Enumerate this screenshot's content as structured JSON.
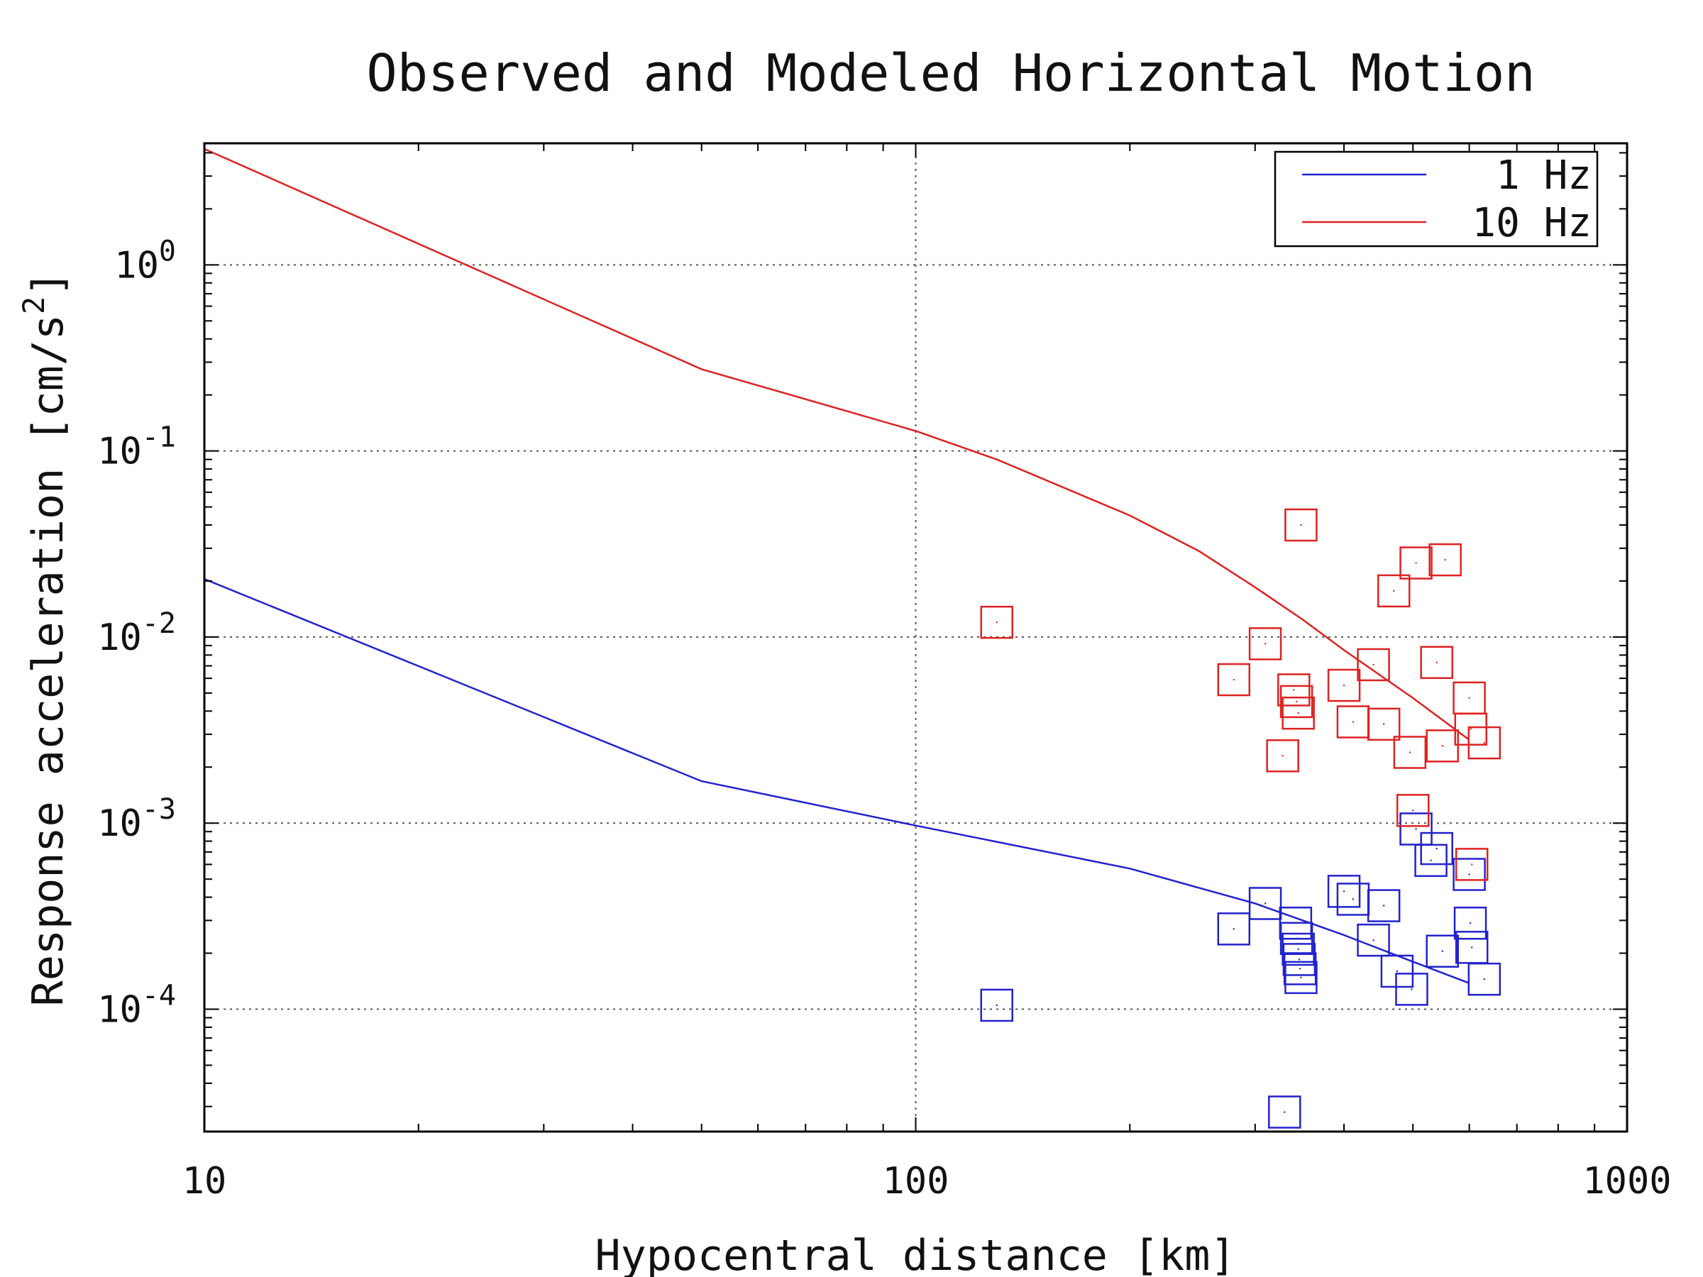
{
  "chart_data": {
    "type": "scatter",
    "title": "Observed and Modeled Horizontal Motion",
    "xlabel": "Hypocentral distance [km]",
    "ylabel": "Response acceleration [cm/s",
    "ylabel_sup": "2",
    "ylabel_end": "]",
    "xscale": "log",
    "yscale": "log",
    "xlim": [
      10,
      1000
    ],
    "ylim": [
      2.2e-05,
      4.5
    ],
    "grid": true,
    "legend_position": "top-right",
    "x_ticks": [
      {
        "value": 10,
        "label": "10"
      },
      {
        "value": 100,
        "label": "100"
      },
      {
        "value": 1000,
        "label": "1000"
      }
    ],
    "y_ticks": [
      {
        "value": 1,
        "base": "10",
        "exp": "0"
      },
      {
        "value": 0.1,
        "base": "10",
        "exp": "-1"
      },
      {
        "value": 0.01,
        "base": "10",
        "exp": "-2"
      },
      {
        "value": 0.001,
        "base": "10",
        "exp": "-3"
      },
      {
        "value": 0.0001,
        "base": "10",
        "exp": "-4"
      }
    ],
    "series": [
      {
        "name": "1 Hz",
        "color": "#2222cc",
        "model": [
          {
            "x": 10,
            "y": 0.0205
          },
          {
            "x": 50,
            "y": 0.00168
          },
          {
            "x": 100,
            "y": 0.00097
          },
          {
            "x": 200,
            "y": 0.00057
          },
          {
            "x": 300,
            "y": 0.00037
          },
          {
            "x": 400,
            "y": 0.00025
          },
          {
            "x": 500,
            "y": 0.00018
          },
          {
            "x": 600,
            "y": 0.000138
          }
        ],
        "observed": [
          {
            "x": 130,
            "y": 0.000105
          },
          {
            "x": 280,
            "y": 0.00027
          },
          {
            "x": 310,
            "y": 0.00037
          },
          {
            "x": 330,
            "y": 2.8e-05
          },
          {
            "x": 342,
            "y": 0.00029
          },
          {
            "x": 343,
            "y": 0.00024
          },
          {
            "x": 345,
            "y": 0.00021
          },
          {
            "x": 346,
            "y": 0.000185
          },
          {
            "x": 347,
            "y": 0.000165
          },
          {
            "x": 348,
            "y": 0.000148
          },
          {
            "x": 400,
            "y": 0.00043
          },
          {
            "x": 412,
            "y": 0.00039
          },
          {
            "x": 440,
            "y": 0.000235
          },
          {
            "x": 455,
            "y": 0.00036
          },
          {
            "x": 475,
            "y": 0.00016
          },
          {
            "x": 498,
            "y": 0.000128
          },
          {
            "x": 505,
            "y": 0.00093
          },
          {
            "x": 530,
            "y": 0.00063
          },
          {
            "x": 540,
            "y": 0.00073
          },
          {
            "x": 550,
            "y": 0.000205
          },
          {
            "x": 600,
            "y": 0.00053
          },
          {
            "x": 602,
            "y": 0.00029
          },
          {
            "x": 605,
            "y": 0.000215
          },
          {
            "x": 630,
            "y": 0.000145
          }
        ]
      },
      {
        "name": "10 Hz",
        "color": "#dd2222",
        "model": [
          {
            "x": 10,
            "y": 4.2
          },
          {
            "x": 50,
            "y": 0.275
          },
          {
            "x": 100,
            "y": 0.128
          },
          {
            "x": 130,
            "y": 0.09
          },
          {
            "x": 200,
            "y": 0.045
          },
          {
            "x": 250,
            "y": 0.029
          },
          {
            "x": 300,
            "y": 0.0185
          },
          {
            "x": 350,
            "y": 0.0124
          },
          {
            "x": 400,
            "y": 0.0085
          },
          {
            "x": 500,
            "y": 0.0047
          },
          {
            "x": 600,
            "y": 0.0028
          }
        ],
        "observed": [
          {
            "x": 130,
            "y": 0.012
          },
          {
            "x": 280,
            "y": 0.0059
          },
          {
            "x": 310,
            "y": 0.0092
          },
          {
            "x": 328,
            "y": 0.0023
          },
          {
            "x": 340,
            "y": 0.0052
          },
          {
            "x": 343,
            "y": 0.0045
          },
          {
            "x": 345,
            "y": 0.0039
          },
          {
            "x": 348,
            "y": 0.04
          },
          {
            "x": 400,
            "y": 0.0055
          },
          {
            "x": 412,
            "y": 0.0035
          },
          {
            "x": 440,
            "y": 0.0071
          },
          {
            "x": 455,
            "y": 0.0034
          },
          {
            "x": 470,
            "y": 0.0177
          },
          {
            "x": 495,
            "y": 0.0024
          },
          {
            "x": 500,
            "y": 0.00117
          },
          {
            "x": 505,
            "y": 0.025
          },
          {
            "x": 540,
            "y": 0.0073
          },
          {
            "x": 550,
            "y": 0.0026
          },
          {
            "x": 555,
            "y": 0.026
          },
          {
            "x": 600,
            "y": 0.0047
          },
          {
            "x": 603,
            "y": 0.0032
          },
          {
            "x": 605,
            "y": 0.0006
          },
          {
            "x": 630,
            "y": 0.0027
          }
        ]
      }
    ]
  }
}
